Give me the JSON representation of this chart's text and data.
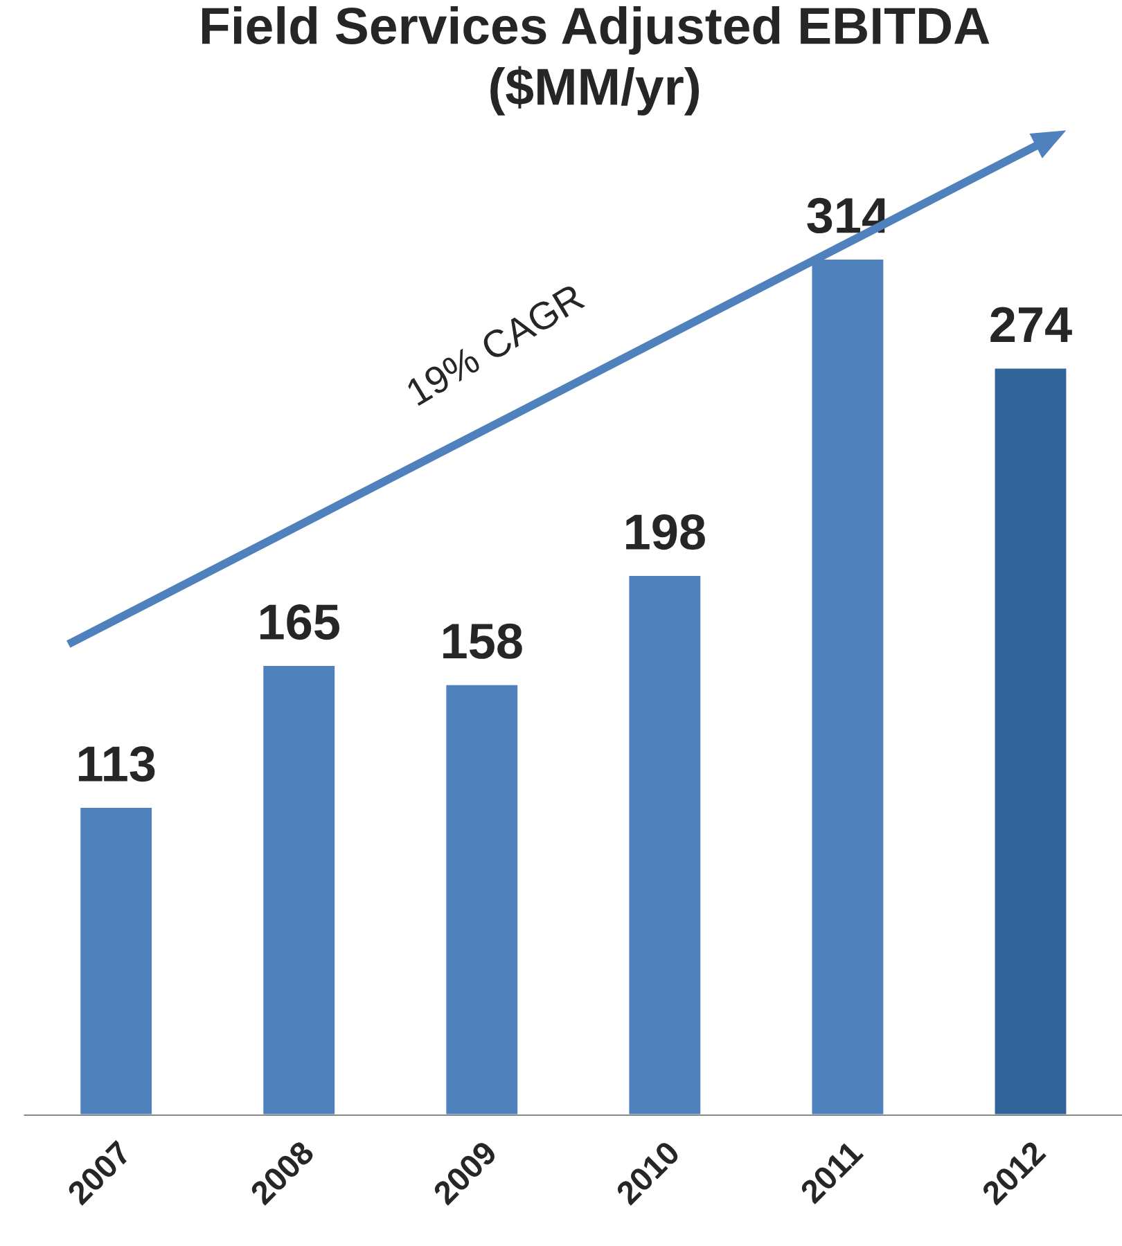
{
  "chart_data": {
    "type": "bar",
    "title": "Field Services Adjusted EBITDA\n($MM/yr)",
    "categories": [
      "2007",
      "2008",
      "2009",
      "2010",
      "2011",
      "2012"
    ],
    "values": [
      113,
      165,
      158,
      198,
      314,
      274
    ],
    "colors": [
      "#4f81bd",
      "#4f81bd",
      "#4f81bd",
      "#4f81bd",
      "#4f81bd",
      "#31659a"
    ],
    "data_labels": true,
    "grid": false,
    "legend": false,
    "annotations": [
      "19% CAGR"
    ]
  }
}
